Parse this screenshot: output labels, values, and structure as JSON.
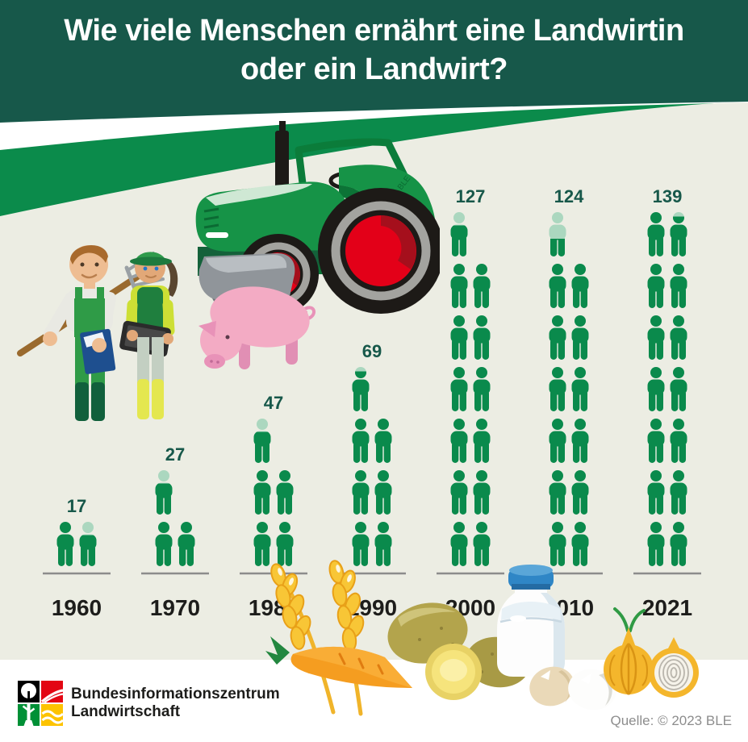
{
  "title": {
    "line1": "Wie viele Menschen ernährt eine Landwirtin",
    "line2": "oder ein Landwirt?"
  },
  "chart_data": {
    "type": "pictogram",
    "title": "Wie viele Menschen ernährt eine Landwirtin oder ein Landwirt?",
    "categories": [
      "1960",
      "1970",
      "1980",
      "1990",
      "2000",
      "2010",
      "2021"
    ],
    "values": [
      17,
      27,
      47,
      69,
      127,
      124,
      139
    ],
    "icon": "person",
    "persons_per_icon": 10,
    "icons_per_row": 2,
    "legend_position": "none",
    "grid": false,
    "colors": {
      "icon": "#0a8a4c",
      "icon_partial": "#abd7bf",
      "value_label": "#17584a",
      "year_label": "#1d1d1b",
      "baseline": "#8c8c8c"
    }
  },
  "tractor_watermark": "© BLE",
  "footer": {
    "org_line1": "Bundesinformationszentrum",
    "org_line2": "Landwirtschaft",
    "source": "Quelle: © 2023 BLE"
  },
  "theme": {
    "header_green": "#17584a",
    "band_green": "#0b8b4b",
    "background": "#ecede3",
    "footer_bg": "#ffffff"
  },
  "illustrations": [
    "tractor",
    "farmer-man",
    "farmer-woman",
    "pig",
    "wheat",
    "carrot",
    "potatoes",
    "milk-bottle",
    "eggs",
    "onions",
    "bzl-logo"
  ]
}
